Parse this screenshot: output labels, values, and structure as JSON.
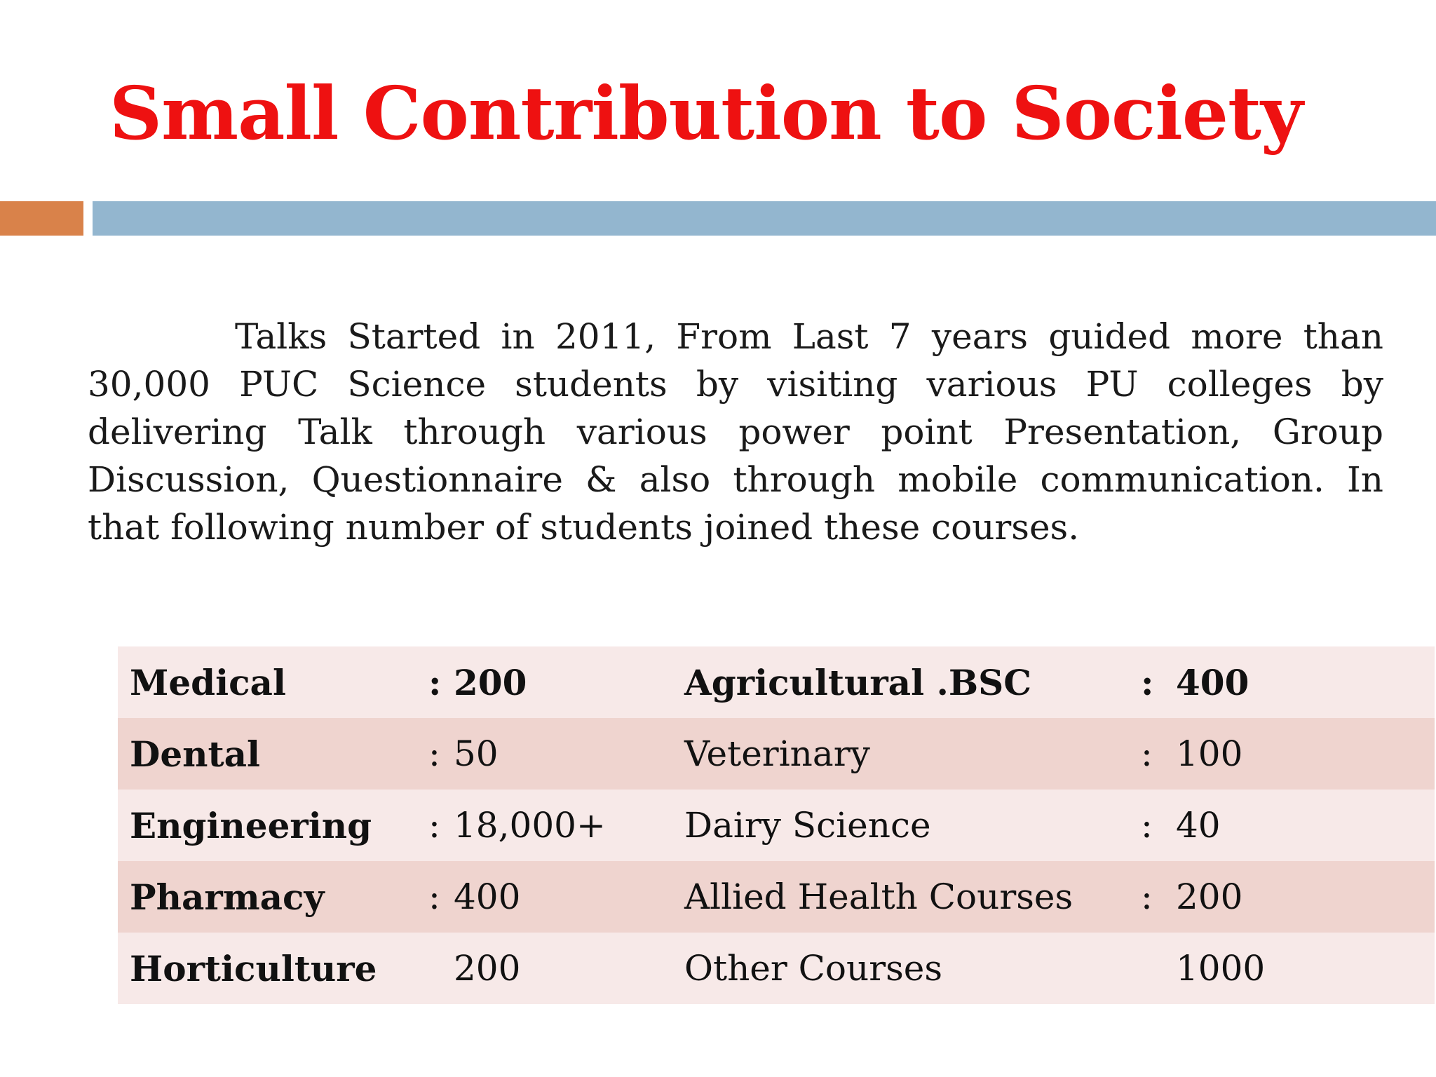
{
  "slide": {
    "title": "Small Contribution to Society",
    "intro": "Talks Started in 2011, From Last 7 years guided more than 30,000 PUC Science students by visiting various PU colleges by delivering Talk through various power point Presentation, Group Discussion, Questionnaire & also through mobile communication. In that following number of students joined these courses.",
    "accent_colors": {
      "orange": "#d9824a",
      "blue": "#93b6cf",
      "title": "#ee1111"
    },
    "courses": [
      {
        "name1": "Medical",
        "sep1": ":",
        "value1": "200",
        "name2": "Agricultural .BSC",
        "sep2": ":",
        "value2": "400"
      },
      {
        "name1": "Dental",
        "sep1": ":",
        "value1": "50",
        "name2": "Veterinary",
        "sep2": ":",
        "value2": "100"
      },
      {
        "name1": "Engineering",
        "sep1": ":",
        "value1": "18,000+",
        "name2": "Dairy Science",
        "sep2": ":",
        "value2": "40"
      },
      {
        "name1": "Pharmacy",
        "sep1": ":",
        "value1": "400",
        "name2": "Allied Health Courses",
        "sep2": ":",
        "value2": "200"
      },
      {
        "name1": "Horticulture",
        "sep1": "",
        "value1": "200",
        "name2": "Other Courses",
        "sep2": "",
        "value2": "1000"
      }
    ]
  }
}
